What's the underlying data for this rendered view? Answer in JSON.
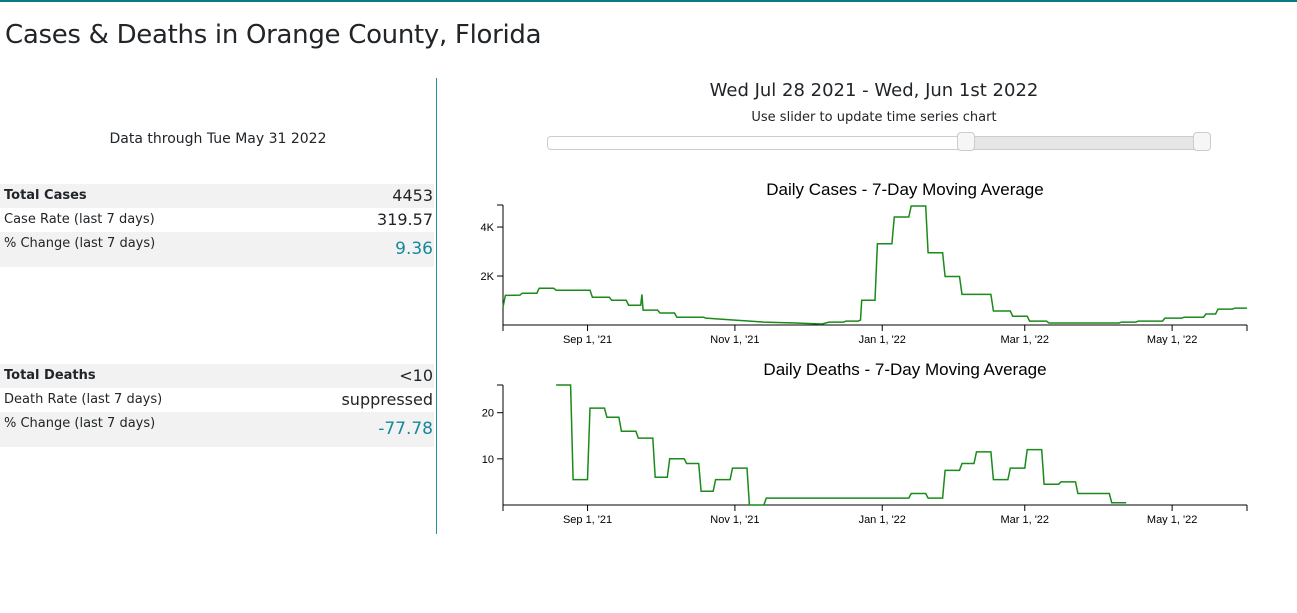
{
  "header": {
    "title": "Cases & Deaths in Orange County, Florida"
  },
  "summary": {
    "data_through": "Data through Tue May 31 2022",
    "cases": [
      {
        "label": "Total Cases",
        "value": "4453"
      },
      {
        "label": "Case Rate (last 7 days)",
        "value": "319.57"
      },
      {
        "label": "% Change (last 7 days)",
        "value": "9.36"
      }
    ],
    "deaths": [
      {
        "label": "Total Deaths",
        "value": "<10"
      },
      {
        "label": "Death Rate (last 7 days)",
        "value": "suppressed"
      },
      {
        "label": "% Change (last 7 days)",
        "value": "-77.78"
      }
    ]
  },
  "range": {
    "label": "Wed Jul 28 2021 - Wed, Jun 1st 2022",
    "hint": "Use slider to update time series chart",
    "slider_low": 0.635,
    "slider_high": 1.0
  },
  "colors": {
    "accent": "#0a7a86",
    "teal_value": "#16889a",
    "line": "#1a8a1a"
  },
  "chart_data": [
    {
      "type": "line",
      "title": "Daily Cases - 7-Day Moving Average",
      "x_start": "2021-07-28",
      "x_end": "2022-06-01",
      "x_unit": "days since Jul 28 2021",
      "xlim": [
        0,
        308
      ],
      "ylim": [
        0,
        4900
      ],
      "yticks": [
        {
          "v": 2000,
          "label": "2K"
        },
        {
          "v": 4000,
          "label": "4K"
        }
      ],
      "xticks": [
        {
          "d": 35,
          "label": "Sep 1, '21"
        },
        {
          "d": 96,
          "label": "Nov 1, '21"
        },
        {
          "d": 157,
          "label": "Jan 1, '22"
        },
        {
          "d": 216,
          "label": "Mar 1, '22"
        },
        {
          "d": 277,
          "label": "May 1, '22"
        }
      ],
      "points": [
        [
          0,
          730
        ],
        [
          1,
          1210
        ],
        [
          7,
          1220
        ],
        [
          8,
          1300
        ],
        [
          14,
          1300
        ],
        [
          15,
          1500
        ],
        [
          21,
          1500
        ],
        [
          22,
          1420
        ],
        [
          36,
          1420
        ],
        [
          37,
          1130
        ],
        [
          44,
          1130
        ],
        [
          45,
          1010
        ],
        [
          51,
          1010
        ],
        [
          52,
          810
        ],
        [
          57,
          810
        ],
        [
          57.5,
          1250
        ],
        [
          58,
          610
        ],
        [
          64,
          610
        ],
        [
          65,
          490
        ],
        [
          71,
          490
        ],
        [
          72,
          320
        ],
        [
          83,
          320
        ],
        [
          84,
          280
        ],
        [
          96,
          200
        ],
        [
          108,
          120
        ],
        [
          121,
          80
        ],
        [
          132,
          40
        ],
        [
          135,
          120
        ],
        [
          141,
          120
        ],
        [
          142,
          160
        ],
        [
          147,
          160
        ],
        [
          148,
          200
        ],
        [
          148.5,
          1010
        ],
        [
          154,
          1010
        ],
        [
          155,
          3320
        ],
        [
          161,
          3320
        ],
        [
          162,
          4410
        ],
        [
          168,
          4410
        ],
        [
          169,
          4860
        ],
        [
          175,
          4860
        ],
        [
          176,
          2950
        ],
        [
          182,
          2950
        ],
        [
          183,
          1980
        ],
        [
          189,
          1980
        ],
        [
          190,
          1250
        ],
        [
          202,
          1250
        ],
        [
          203,
          570
        ],
        [
          210,
          570
        ],
        [
          211,
          360
        ],
        [
          217,
          360
        ],
        [
          218,
          160
        ],
        [
          225,
          160
        ],
        [
          226,
          80
        ],
        [
          255,
          80
        ],
        [
          256,
          120
        ],
        [
          262,
          120
        ],
        [
          263,
          160
        ],
        [
          273,
          160
        ],
        [
          274,
          280
        ],
        [
          281,
          280
        ],
        [
          282,
          320
        ],
        [
          290,
          320
        ],
        [
          291,
          450
        ],
        [
          295,
          450
        ],
        [
          296,
          650
        ],
        [
          302,
          650
        ],
        [
          303,
          690
        ],
        [
          308,
          690
        ]
      ]
    },
    {
      "type": "line",
      "title": "Daily Deaths - 7-Day Moving Average",
      "x_start": "2021-07-28",
      "x_end": "2022-06-01",
      "x_unit": "days since Jul 28 2021",
      "xlim": [
        0,
        308
      ],
      "ylim": [
        0,
        26
      ],
      "yticks": [
        {
          "v": 10,
          "label": "10"
        },
        {
          "v": 20,
          "label": "20"
        }
      ],
      "xticks": [
        {
          "d": 35,
          "label": "Sep 1, '21"
        },
        {
          "d": 96,
          "label": "Nov 1, '21"
        },
        {
          "d": 157,
          "label": "Jan 1, '22"
        },
        {
          "d": 216,
          "label": "Mar 1, '22"
        },
        {
          "d": 277,
          "label": "May 1, '22"
        }
      ],
      "points": [
        [
          22,
          26
        ],
        [
          28,
          26
        ],
        [
          29,
          5.5
        ],
        [
          35,
          5.5
        ],
        [
          36,
          21
        ],
        [
          42,
          21
        ],
        [
          43,
          19
        ],
        [
          48,
          19
        ],
        [
          49,
          16
        ],
        [
          55,
          16
        ],
        [
          56,
          14.5
        ],
        [
          62,
          14.5
        ],
        [
          63,
          6
        ],
        [
          68,
          6
        ],
        [
          69,
          10
        ],
        [
          75,
          10
        ],
        [
          76,
          9
        ],
        [
          81,
          9
        ],
        [
          82,
          3
        ],
        [
          87,
          3
        ],
        [
          88,
          5.5
        ],
        [
          94,
          5.5
        ],
        [
          95,
          8
        ],
        [
          101,
          8
        ],
        [
          102,
          0
        ],
        [
          108,
          0
        ],
        [
          109,
          1.5
        ],
        [
          168,
          1.5
        ],
        [
          169,
          2.5
        ],
        [
          175,
          2.5
        ],
        [
          176,
          1.5
        ],
        [
          182,
          1.5
        ],
        [
          183,
          7.5
        ],
        [
          189,
          7.5
        ],
        [
          190,
          9
        ],
        [
          195,
          9
        ],
        [
          196,
          11.5
        ],
        [
          202,
          11.5
        ],
        [
          203,
          5.5
        ],
        [
          209,
          5.5
        ],
        [
          210,
          8
        ],
        [
          216,
          8
        ],
        [
          217,
          12
        ],
        [
          223,
          12
        ],
        [
          224,
          4.5
        ],
        [
          230,
          4.5
        ],
        [
          231,
          5
        ],
        [
          237,
          5
        ],
        [
          238,
          2.5
        ],
        [
          251,
          2.5
        ],
        [
          252,
          0.5
        ],
        [
          258,
          0.5
        ]
      ]
    }
  ]
}
